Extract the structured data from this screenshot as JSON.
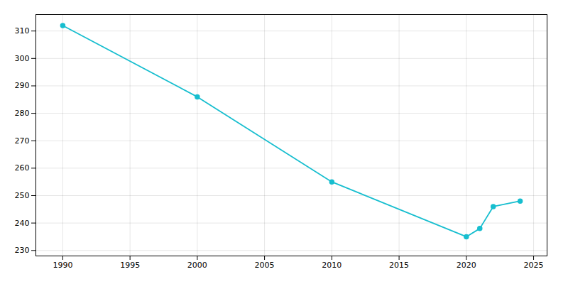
{
  "chart_data": {
    "type": "line",
    "x": [
      1990,
      2000,
      2010,
      2020,
      2021,
      2022,
      2024
    ],
    "values": [
      312,
      286,
      255,
      235,
      238,
      246,
      248
    ],
    "color": "#17becf",
    "marker": "circle",
    "xlim": [
      1988,
      2026
    ],
    "ylim": [
      228,
      316
    ],
    "xticks": [
      1990,
      1995,
      2000,
      2005,
      2010,
      2015,
      2020,
      2025
    ],
    "yticks": [
      230,
      240,
      250,
      260,
      270,
      280,
      290,
      300,
      310
    ],
    "grid": true
  }
}
